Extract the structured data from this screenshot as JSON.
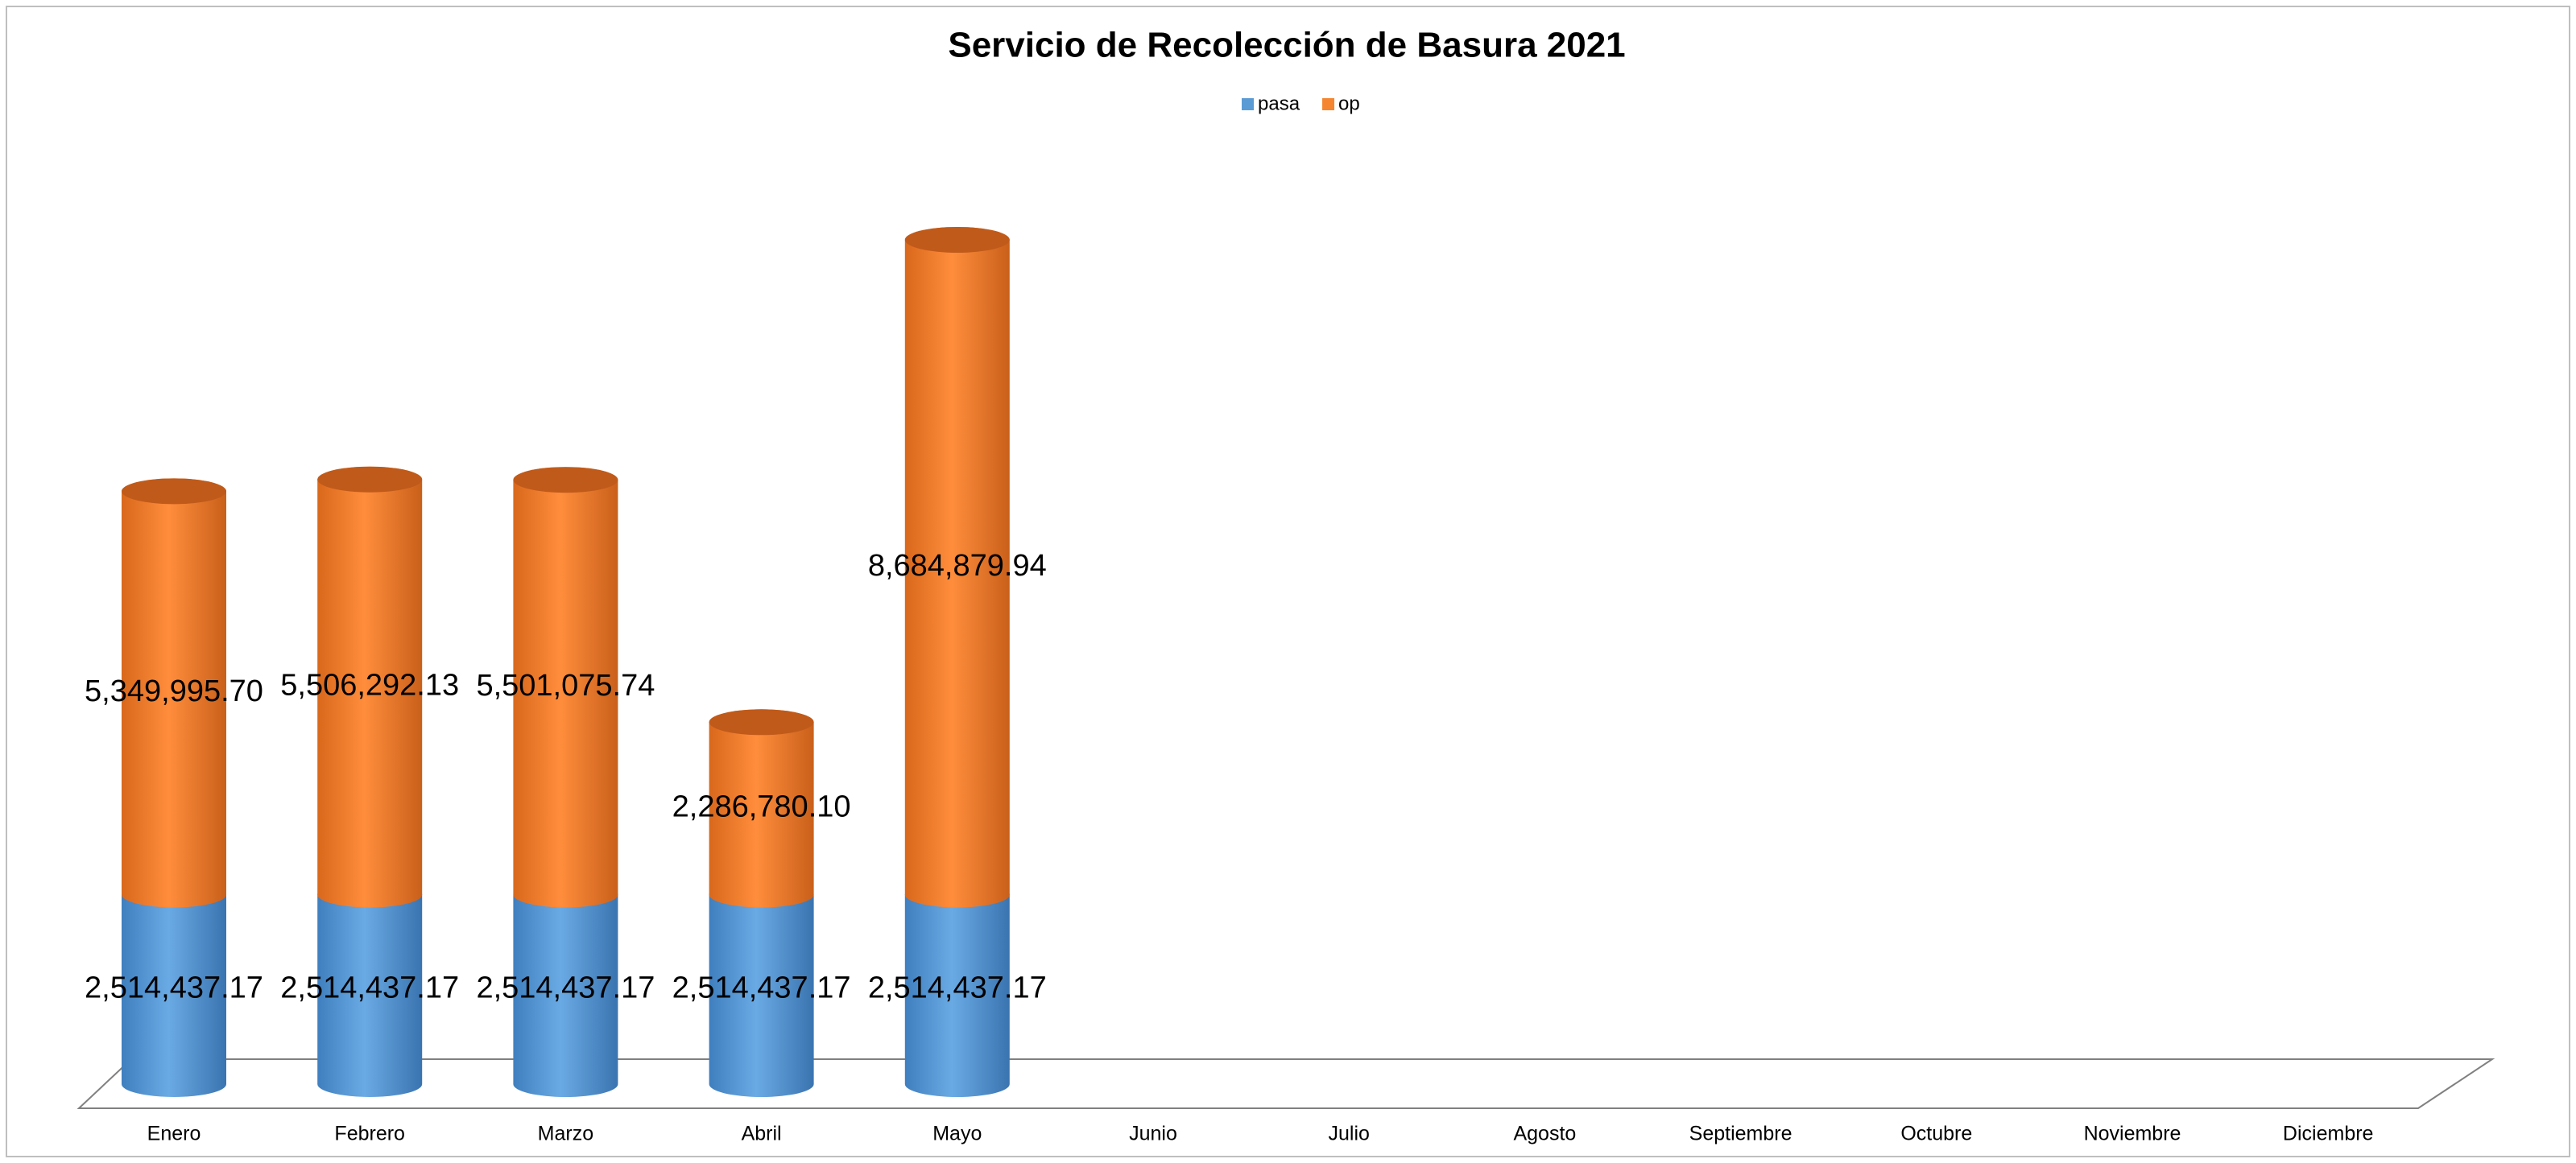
{
  "chart_data": {
    "type": "bar",
    "stacked": true,
    "title": "Servicio de Recolección de Basura 2021",
    "categories": [
      "Enero",
      "Febrero",
      "Marzo",
      "Abril",
      "Mayo",
      "Junio",
      "Julio",
      "Agosto",
      "Septiembre",
      "Octubre",
      "Noviembre",
      "Diciembre"
    ],
    "series": [
      {
        "name": "pasa",
        "color": "#5b9bd5",
        "values": [
          2514437.17,
          2514437.17,
          2514437.17,
          2514437.17,
          2514437.17,
          null,
          null,
          null,
          null,
          null,
          null,
          null
        ],
        "value_labels": [
          "2,514,437.17",
          "2,514,437.17",
          "2,514,437.17",
          "2,514,437.17",
          "2,514,437.17",
          null,
          null,
          null,
          null,
          null,
          null,
          null
        ]
      },
      {
        "name": "op",
        "color": "#f58530",
        "values": [
          5349995.7,
          5506292.13,
          5501075.74,
          2286780.1,
          8684879.94,
          null,
          null,
          null,
          null,
          null,
          null,
          null
        ],
        "value_labels": [
          "5,349,995.70",
          "5,506,292.13",
          "5,501,075.74",
          "2,286,780.10",
          "8,684,879.94",
          null,
          null,
          null,
          null,
          null,
          null,
          null
        ]
      }
    ],
    "legend": "top"
  }
}
